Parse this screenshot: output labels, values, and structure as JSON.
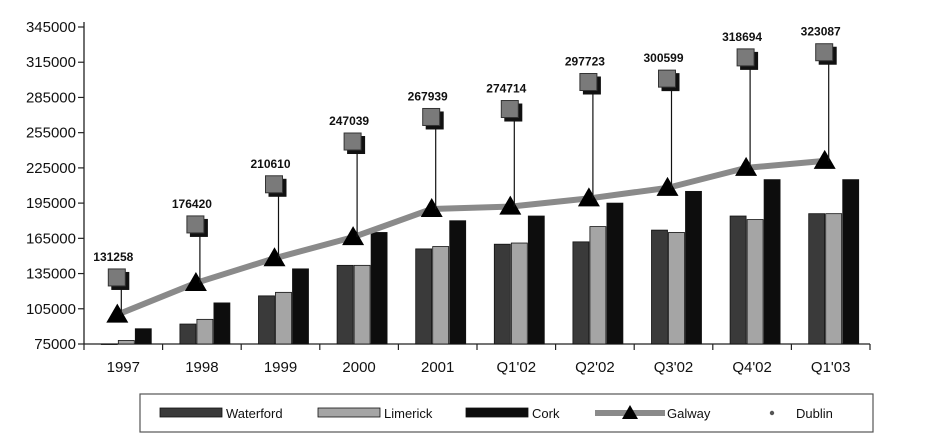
{
  "chart_data": {
    "type": "bar",
    "title": "",
    "xlabel": "",
    "ylabel": "",
    "ylim": [
      75000,
      345000
    ],
    "yticks": [
      75000,
      105000,
      135000,
      165000,
      195000,
      225000,
      255000,
      285000,
      315000,
      345000
    ],
    "categories": [
      "1997",
      "1998",
      "1999",
      "2000",
      "2001",
      "Q1'02",
      "Q2'02",
      "Q3'02",
      "Q4'02",
      "Q1'03"
    ],
    "series": [
      {
        "name": "Waterford",
        "kind": "bar",
        "color": "#3a3a3a",
        "values": [
          75000,
          92000,
          116000,
          142000,
          156000,
          160000,
          162000,
          172000,
          184000,
          186000
        ]
      },
      {
        "name": "Limerick",
        "kind": "bar",
        "color": "#a5a5a5",
        "values": [
          78000,
          96000,
          119000,
          142000,
          158000,
          161000,
          175000,
          170000,
          181000,
          186000
        ]
      },
      {
        "name": "Cork",
        "kind": "bar",
        "color": "#0d0d0d",
        "values": [
          88000,
          110000,
          139000,
          170000,
          180000,
          184000,
          195000,
          205000,
          215000,
          215000
        ]
      },
      {
        "name": "Galway",
        "kind": "line",
        "color": "#8a8a8a",
        "values": [
          100000,
          127000,
          148000,
          166000,
          190000,
          192000,
          199000,
          208000,
          225000,
          231000
        ]
      },
      {
        "name": "Dublin",
        "kind": "marker",
        "color": "#7a7a7a",
        "values": [
          131258,
          176420,
          210610,
          247039,
          267939,
          274714,
          297723,
          300599,
          318694,
          323087
        ]
      }
    ],
    "data_labels": [
      "131258",
      "176420",
      "210610",
      "247039",
      "267939",
      "274714",
      "297723",
      "300599",
      "318694",
      "323087"
    ],
    "legend_position": "bottom",
    "grid": false
  }
}
